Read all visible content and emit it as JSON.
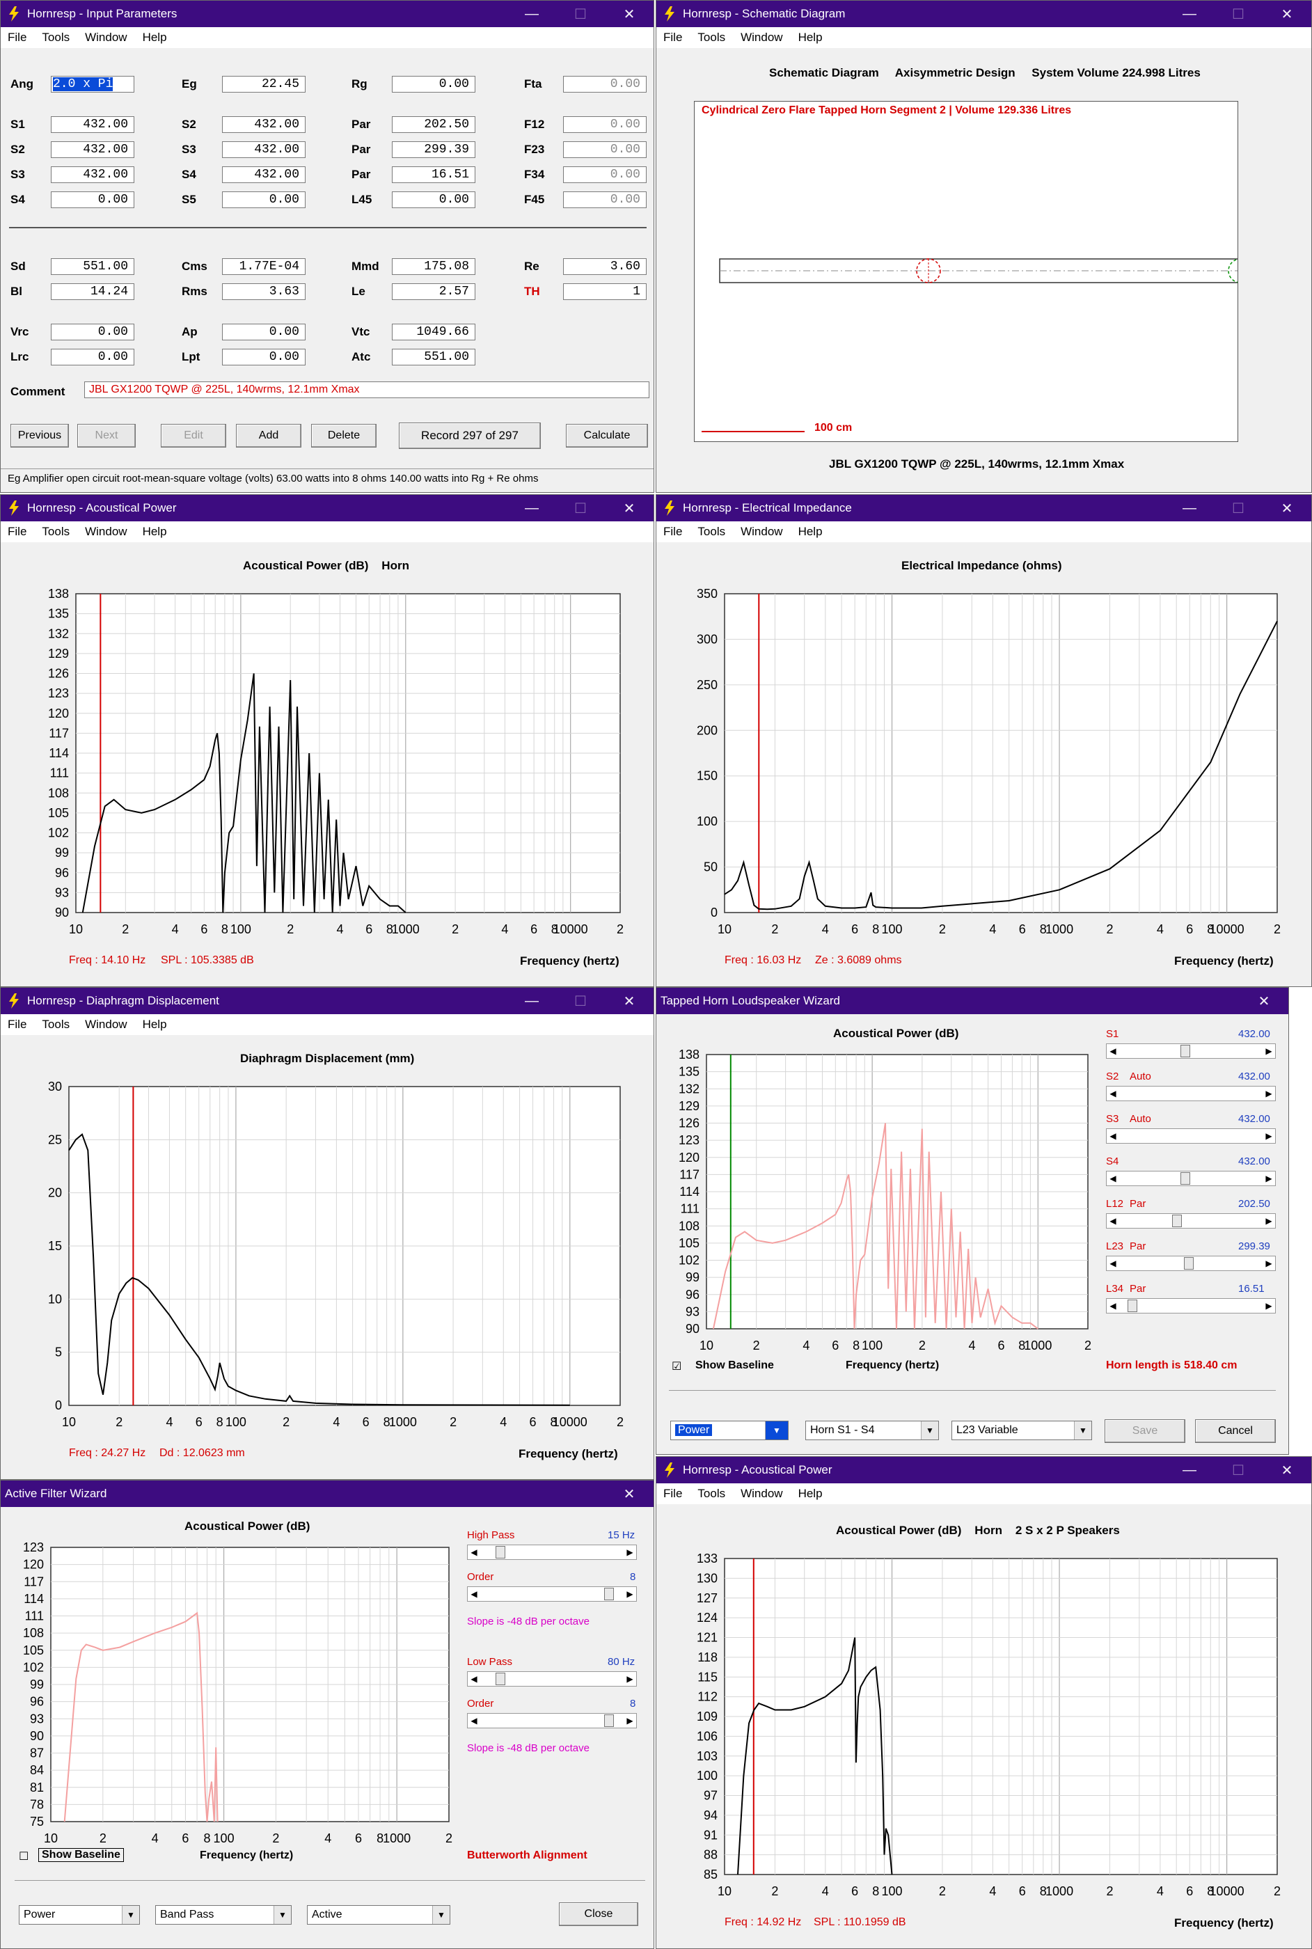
{
  "colors": {
    "title_bar": "#3d0c80",
    "red": "#d40000",
    "blue": "#1f3fbf",
    "magenta": "#d800c8",
    "pink": "#f4a0a0",
    "green": "#008800"
  },
  "menu": {
    "file": "File",
    "tools": "Tools",
    "window": "Window",
    "help": "Help"
  },
  "win_input": {
    "title": "Hornresp - Input Parameters",
    "fields": [
      {
        "label": "Ang",
        "value": "2.0 x Pi",
        "selected": true
      },
      {
        "label": "Eg",
        "value": "22.45"
      },
      {
        "label": "Rg",
        "value": "0.00"
      },
      {
        "label": "Fta",
        "value": "0.00",
        "gray": true
      },
      {
        "label": "S1",
        "value": "432.00"
      },
      {
        "label": "S2",
        "value": "432.00"
      },
      {
        "label": "Par",
        "value": "202.50"
      },
      {
        "label": "F12",
        "value": "0.00",
        "gray": true
      },
      {
        "label": "S2",
        "value": "432.00"
      },
      {
        "label": "S3",
        "value": "432.00"
      },
      {
        "label": "Par",
        "value": "299.39"
      },
      {
        "label": "F23",
        "value": "0.00",
        "gray": true
      },
      {
        "label": "S3",
        "value": "432.00"
      },
      {
        "label": "S4",
        "value": "432.00"
      },
      {
        "label": "Par",
        "value": "16.51"
      },
      {
        "label": "F34",
        "value": "0.00",
        "gray": true
      },
      {
        "label": "S4",
        "value": "0.00"
      },
      {
        "label": "S5",
        "value": "0.00"
      },
      {
        "label": "L45",
        "value": "0.00"
      },
      {
        "label": "F45",
        "value": "0.00",
        "gray": true
      },
      {
        "label": "Sd",
        "value": "551.00"
      },
      {
        "label": "Cms",
        "value": "1.77E-04"
      },
      {
        "label": "Mmd",
        "value": "175.08"
      },
      {
        "label": "Re",
        "value": "3.60"
      },
      {
        "label": "Bl",
        "value": "14.24"
      },
      {
        "label": "Rms",
        "value": "3.63"
      },
      {
        "label": "Le",
        "value": "2.57"
      },
      {
        "label": "TH",
        "value": "1",
        "red": true
      },
      {
        "label": "Vrc",
        "value": "0.00"
      },
      {
        "label": "Ap",
        "value": "0.00"
      },
      {
        "label": "Vtc",
        "value": "1049.66"
      },
      {
        "label": "Lrc",
        "value": "0.00"
      },
      {
        "label": "Lpt",
        "value": "0.00"
      },
      {
        "label": "Atc",
        "value": "551.00"
      }
    ],
    "comment_label": "Comment",
    "comment": "JBL GX1200 TQWP @ 225L, 140wrms, 12.1mm Xmax",
    "buttons": {
      "previous": "Previous",
      "next": "Next",
      "edit": "Edit",
      "add": "Add",
      "delete": "Delete",
      "record": "Record 297 of 297",
      "calculate": "Calculate"
    },
    "status": "Eg   Amplifier open circuit root-mean-square voltage  (volts)   63.00 watts into 8 ohms   140.00 watts into Rg + Re ohms"
  },
  "win_schematic": {
    "title": "Hornresp - Schematic Diagram",
    "header": "Schematic Diagram     Axisymmetric Design     System Volume 224.998 Litres",
    "red_title": "Cylindrical Zero Flare Tapped Horn Segment 2 | Volume 129.336 Litres",
    "scale": "100 cm",
    "caption": "JBL GX1200 TQWP @ 225L, 140wrms, 12.1mm Xmax"
  },
  "win_acoustic": {
    "title": "Hornresp - Acoustical Power",
    "chart_title": "Acoustical Power (dB)    Horn",
    "freq_readout": "Freq : 14.10 Hz",
    "value_readout": "SPL : 105.3385 dB",
    "xlabel": "Frequency (hertz)"
  },
  "win_impedance": {
    "title": "Hornresp - Electrical Impedance",
    "chart_title": "Electrical Impedance (ohms)",
    "freq_readout": "Freq : 16.03 Hz",
    "value_readout": "Ze : 3.6089 ohms",
    "xlabel": "Frequency (hertz)"
  },
  "win_displacement": {
    "title": "Hornresp - Diaphragm Displacement",
    "chart_title": "Diaphragm Displacement (mm)",
    "freq_readout": "Freq : 24.27 Hz",
    "value_readout": "Dd : 12.0623 mm",
    "xlabel": "Frequency (hertz)"
  },
  "win_tapped": {
    "title": "Tapped Horn Loudspeaker Wizard",
    "chart_title": "Acoustical Power (dB)",
    "xlabel": "Frequency (hertz)",
    "show_baseline": "Show Baseline",
    "horn_length": "Horn length is 518.40 cm",
    "sliders": [
      {
        "name": "S1",
        "mode": "",
        "value": "432.00",
        "pos": 0.45
      },
      {
        "name": "S2",
        "mode": "Auto",
        "value": "432.00",
        "pos": null
      },
      {
        "name": "S3",
        "mode": "Auto",
        "value": "432.00",
        "pos": null
      },
      {
        "name": "S4",
        "mode": "",
        "value": "432.00",
        "pos": 0.45
      },
      {
        "name": "L12",
        "mode": "Par",
        "value": "202.50",
        "pos": 0.39
      },
      {
        "name": "L23",
        "mode": "Par",
        "value": "299.39",
        "pos": 0.48
      },
      {
        "name": "L34",
        "mode": "Par",
        "value": "16.51",
        "pos": 0.05
      }
    ],
    "combos": [
      "Power",
      "Horn S1 - S4",
      "L23 Variable"
    ],
    "save": "Save",
    "cancel": "Cancel"
  },
  "win_filter": {
    "title": "Active Filter Wizard",
    "chart_title": "Acoustical Power (dB)",
    "xlabel": "Frequency (hertz)",
    "high_pass": "High Pass",
    "high_pass_value": "15 Hz",
    "order1": "Order",
    "order1_value": "8",
    "slope1": "Slope is -48 dB per octave",
    "low_pass": "Low Pass",
    "low_pass_value": "80 Hz",
    "order2": "Order",
    "order2_value": "8",
    "slope2": "Slope is -48 dB per octave",
    "show_baseline": "Show Baseline",
    "alignment": "Butterworth Alignment",
    "combos": [
      "Power",
      "Band Pass",
      "Active"
    ],
    "close": "Close"
  },
  "win_acoustic2": {
    "title": "Hornresp - Acoustical Power",
    "chart_title": "Acoustical Power (dB)    Horn    2 S x 2 P Speakers",
    "freq_readout": "Freq : 14.92 Hz",
    "value_readout": "SPL : 110.1959 dB",
    "xlabel": "Frequency (hertz)"
  },
  "chart_data": [
    {
      "id": "acoustic",
      "type": "line",
      "scale": "log",
      "xlim": [
        10,
        20000
      ],
      "ylim": [
        90,
        138
      ],
      "yticks": [
        138,
        135,
        132,
        129,
        126,
        123,
        120,
        117,
        114,
        111,
        108,
        105,
        102,
        99,
        96,
        93,
        90
      ],
      "xticks": [
        "10",
        "2",
        "4",
        "6",
        "8",
        "100",
        "2",
        "4",
        "6",
        "8",
        "1000",
        "2",
        "4",
        "6",
        "8",
        "10000",
        "2"
      ],
      "cursor": 14.1,
      "series": [
        {
          "x": [
            11,
            13,
            15,
            17,
            20,
            25,
            30,
            40,
            50,
            60,
            65,
            70,
            72,
            74,
            76,
            78,
            80,
            85,
            90,
            100,
            110,
            120,
            125,
            130,
            140,
            150,
            160,
            170,
            180,
            200,
            210,
            220,
            240,
            260,
            280,
            300,
            320,
            340,
            360,
            380,
            400,
            420,
            450,
            500,
            550,
            600,
            700,
            800,
            900,
            1000
          ],
          "y": [
            90,
            100,
            106,
            107,
            105.5,
            105,
            105.5,
            107,
            108.5,
            110,
            112,
            116,
            117,
            114,
            104,
            90,
            96,
            102,
            103,
            113,
            119,
            126,
            97,
            118,
            90,
            121,
            93,
            118,
            90,
            125,
            92,
            121,
            91,
            114,
            90,
            111,
            92,
            107,
            90,
            104,
            91,
            99,
            92,
            97,
            91,
            94,
            92,
            91,
            91,
            90
          ]
        }
      ]
    },
    {
      "id": "impedance",
      "type": "line",
      "scale": "log",
      "xlim": [
        10,
        20000
      ],
      "ylim": [
        0,
        350
      ],
      "yticks": [
        350,
        300,
        250,
        200,
        150,
        100,
        50,
        0
      ],
      "xticks": [
        "10",
        "2",
        "4",
        "6",
        "8",
        "100",
        "2",
        "4",
        "6",
        "8",
        "1000",
        "2",
        "4",
        "6",
        "8",
        "10000",
        "2"
      ],
      "cursor": 16.03,
      "series": [
        {
          "x": [
            10,
            11,
            12,
            13,
            14,
            15,
            16,
            18,
            20,
            25,
            28,
            30,
            32,
            34,
            36,
            40,
            50,
            60,
            70,
            75,
            77,
            80,
            100,
            150,
            200,
            500,
            1000,
            2000,
            4000,
            8000,
            12000,
            16000,
            20000
          ],
          "y": [
            20,
            25,
            35,
            55,
            30,
            8,
            4,
            3.6,
            4,
            7,
            15,
            40,
            55,
            35,
            15,
            7,
            5,
            5,
            6,
            22,
            8,
            6,
            5,
            5,
            7,
            13,
            25,
            48,
            90,
            165,
            240,
            285,
            320
          ]
        }
      ]
    },
    {
      "id": "displacement",
      "type": "line",
      "scale": "log",
      "xlim": [
        10,
        20000
      ],
      "ylim": [
        0,
        30
      ],
      "yticks": [
        30,
        25,
        20,
        15,
        10,
        5,
        0
      ],
      "xticks": [
        "10",
        "2",
        "4",
        "6",
        "8",
        "100",
        "2",
        "4",
        "6",
        "8",
        "1000",
        "2",
        "4",
        "6",
        "8",
        "10000",
        "2"
      ],
      "cursor": 24.27,
      "series": [
        {
          "x": [
            10,
            11,
            12,
            13,
            14,
            15,
            16,
            17,
            18,
            20,
            22,
            24,
            26,
            30,
            40,
            50,
            60,
            70,
            75,
            78,
            80,
            85,
            90,
            100,
            120,
            150,
            200,
            210,
            220,
            300,
            500,
            1000,
            10000
          ],
          "y": [
            24,
            25,
            25.5,
            24,
            14,
            3,
            1,
            4,
            8,
            10.5,
            11.5,
            12,
            11.8,
            11,
            8.5,
            6.2,
            4.5,
            2.5,
            1.5,
            2.8,
            4,
            2.5,
            1.8,
            1.4,
            0.9,
            0.6,
            0.4,
            0.9,
            0.4,
            0.2,
            0.1,
            0.05,
            0.02
          ]
        }
      ]
    },
    {
      "id": "tapped",
      "type": "line",
      "scale": "log",
      "xlim": [
        10,
        2000
      ],
      "ylim": [
        90,
        138
      ],
      "yticks": [
        138,
        135,
        132,
        129,
        126,
        123,
        120,
        117,
        114,
        111,
        108,
        105,
        102,
        99,
        96,
        93,
        90
      ],
      "xticks": [
        "10",
        "2",
        "4",
        "6",
        "8",
        "100",
        "2",
        "4",
        "6",
        "8",
        "1000",
        "2"
      ],
      "cursor": 14.0,
      "series": [
        {
          "x": [
            11,
            13,
            15,
            17,
            20,
            25,
            30,
            40,
            50,
            60,
            65,
            70,
            72,
            74,
            76,
            78,
            80,
            85,
            90,
            100,
            110,
            120,
            125,
            130,
            140,
            150,
            160,
            170,
            180,
            200,
            210,
            220,
            240,
            260,
            280,
            300,
            320,
            340,
            360,
            380,
            400,
            420,
            450,
            500,
            550,
            600,
            700,
            800,
            900,
            1000
          ],
          "y": [
            90,
            100,
            106,
            107,
            105.5,
            105,
            105.5,
            107,
            108.5,
            110,
            112,
            116,
            117,
            114,
            104,
            90,
            96,
            102,
            103,
            113,
            119,
            126,
            97,
            118,
            90,
            121,
            93,
            118,
            90,
            125,
            92,
            121,
            91,
            114,
            90,
            111,
            92,
            107,
            90,
            104,
            91,
            99,
            92,
            97,
            91,
            94,
            92,
            91,
            91,
            90
          ]
        }
      ]
    },
    {
      "id": "filter",
      "type": "line",
      "scale": "log",
      "xlim": [
        10,
        2000
      ],
      "ylim": [
        75,
        123
      ],
      "yticks": [
        123,
        120,
        117,
        114,
        111,
        108,
        105,
        102,
        99,
        96,
        93,
        90,
        87,
        84,
        81,
        78,
        75
      ],
      "xticks": [
        "10",
        "2",
        "4",
        "6",
        "8",
        "100",
        "2",
        "4",
        "6",
        "8",
        "1000",
        "2"
      ],
      "series": [
        {
          "x": [
            12,
            13,
            14,
            15,
            16,
            18,
            20,
            25,
            30,
            40,
            50,
            60,
            70,
            72,
            75,
            78,
            80,
            82,
            85,
            88,
            90,
            92
          ],
          "y": [
            75,
            88,
            100,
            105,
            106,
            105.5,
            105,
            105.5,
            106.5,
            108,
            109,
            110,
            111.5,
            108,
            95,
            80,
            75,
            79,
            82,
            75,
            88,
            75
          ]
        }
      ]
    },
    {
      "id": "acoustic2",
      "type": "line",
      "scale": "log",
      "xlim": [
        10,
        20000
      ],
      "ylim": [
        85,
        133
      ],
      "yticks": [
        133,
        130,
        127,
        124,
        121,
        118,
        115,
        112,
        109,
        106,
        103,
        100,
        97,
        94,
        91,
        88,
        85
      ],
      "xticks": [
        "10",
        "2",
        "4",
        "6",
        "8",
        "100",
        "2",
        "4",
        "6",
        "8",
        "1000",
        "2",
        "4",
        "6",
        "8",
        "10000",
        "2"
      ],
      "cursor": 14.92,
      "series": [
        {
          "x": [
            12,
            13,
            14,
            15,
            16,
            18,
            20,
            25,
            30,
            40,
            50,
            55,
            58,
            60,
            61,
            62,
            63,
            65,
            70,
            75,
            80,
            85,
            88,
            90,
            92,
            95,
            100
          ],
          "y": [
            85,
            100,
            108,
            110,
            111,
            110.5,
            110,
            110,
            110.5,
            112,
            114,
            116,
            119,
            121,
            102,
            108,
            112,
            113.5,
            115,
            116,
            116.5,
            110,
            100,
            88,
            92,
            91,
            85
          ]
        }
      ]
    }
  ]
}
